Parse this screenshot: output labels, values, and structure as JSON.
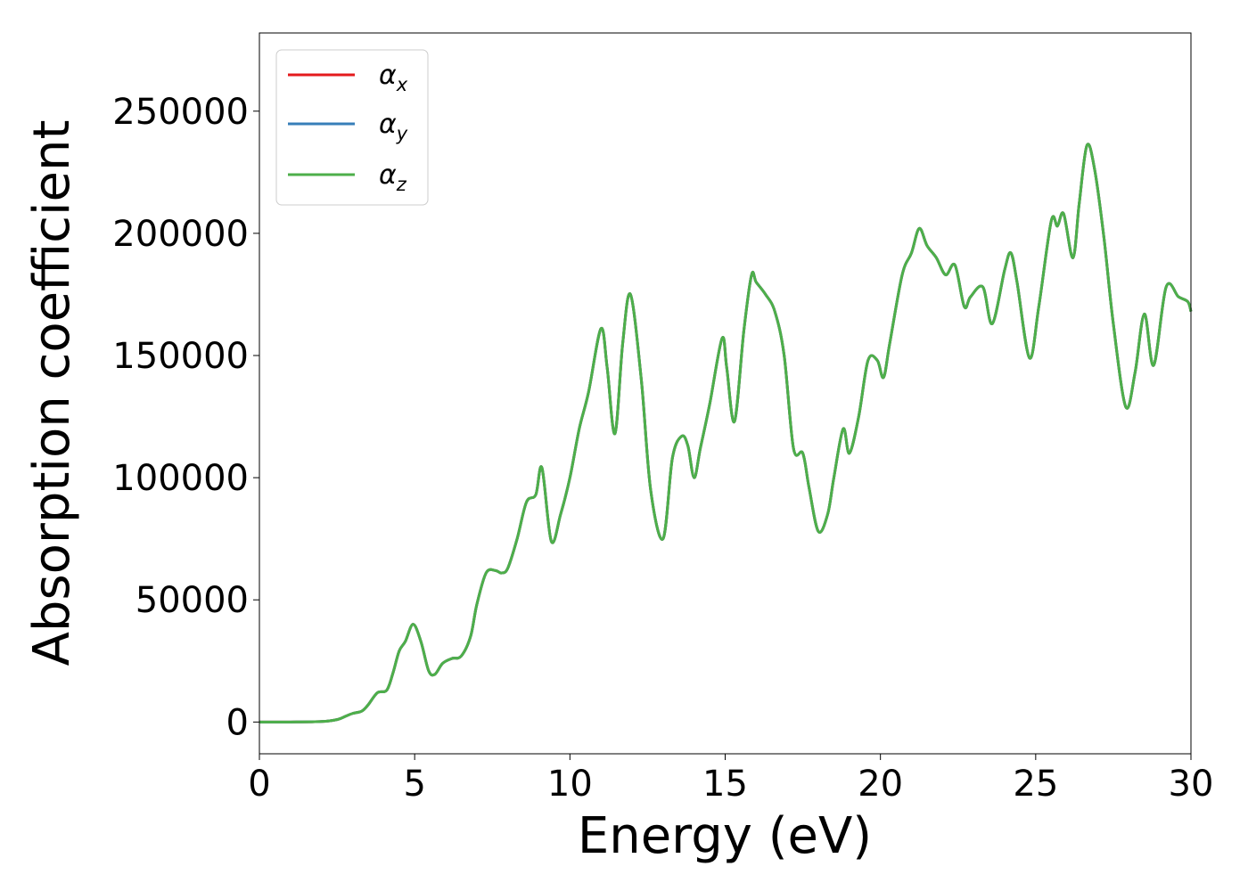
{
  "chart_data": {
    "type": "line",
    "xlabel": "Energy (eV)",
    "ylabel": "Absorption coefficient",
    "xlim": [
      0,
      30
    ],
    "ylim": [
      -13000,
      282000
    ],
    "xticks": [
      0,
      5,
      10,
      15,
      20,
      25,
      30
    ],
    "xtick_labels": [
      "0",
      "5",
      "10",
      "15",
      "20",
      "25",
      "30"
    ],
    "yticks": [
      0,
      50000,
      100000,
      150000,
      200000,
      250000
    ],
    "ytick_labels": [
      "0",
      "50000",
      "100000",
      "150000",
      "200000",
      "250000"
    ],
    "grid": false,
    "legend_position": "top-left",
    "series": [
      {
        "name": "α",
        "subscript": "x",
        "color": "#e41a1c"
      },
      {
        "name": "α",
        "subscript": "y",
        "color": "#377eb8"
      },
      {
        "name": "α",
        "subscript": "z",
        "color": "#4daf4a"
      }
    ],
    "x": [
      0,
      1,
      2,
      2.5,
      2.8,
      3.0,
      3.3,
      3.5,
      3.8,
      4.1,
      4.3,
      4.5,
      4.7,
      4.95,
      5.2,
      5.45,
      5.65,
      5.9,
      6.2,
      6.5,
      6.8,
      7.0,
      7.3,
      7.6,
      7.8,
      8.0,
      8.3,
      8.6,
      8.9,
      9.1,
      9.4,
      9.7,
      10.0,
      10.3,
      10.6,
      11.0,
      11.2,
      11.45,
      11.7,
      11.95,
      12.3,
      12.6,
      13.0,
      13.3,
      13.6,
      13.8,
      14.0,
      14.2,
      14.5,
      14.9,
      15.05,
      15.3,
      15.6,
      15.85,
      16.0,
      16.3,
      16.6,
      16.9,
      17.2,
      17.5,
      17.7,
      18.0,
      18.3,
      18.5,
      18.8,
      19.0,
      19.3,
      19.6,
      19.9,
      20.1,
      20.3,
      20.7,
      21.0,
      21.25,
      21.5,
      21.8,
      22.1,
      22.4,
      22.7,
      22.9,
      23.3,
      23.6,
      24.0,
      24.2,
      24.4,
      24.8,
      25.1,
      25.5,
      25.7,
      25.9,
      26.2,
      26.4,
      26.65,
      26.9,
      27.2,
      27.5,
      27.9,
      28.2,
      28.5,
      28.8,
      29.2,
      29.6,
      29.9,
      30.0
    ],
    "y": [
      0,
      0,
      200,
      1000,
      2500,
      3500,
      4500,
      7000,
      12000,
      13000,
      20000,
      29000,
      33000,
      40000,
      33000,
      21000,
      19500,
      24000,
      26000,
      27000,
      35000,
      48000,
      61000,
      62000,
      61000,
      63000,
      75000,
      90000,
      93000,
      104000,
      74000,
      85000,
      100000,
      120000,
      135000,
      161000,
      145000,
      118000,
      155000,
      175000,
      140000,
      95000,
      75000,
      108000,
      117000,
      113000,
      100000,
      112000,
      130000,
      157000,
      145000,
      123000,
      160000,
      183000,
      180000,
      175000,
      168000,
      150000,
      112000,
      110000,
      96000,
      78000,
      85000,
      100000,
      120000,
      110000,
      125000,
      148000,
      148000,
      141000,
      155000,
      183000,
      192000,
      202000,
      195000,
      190000,
      183000,
      187000,
      170000,
      174000,
      178000,
      163000,
      185000,
      192000,
      180000,
      149000,
      170000,
      205000,
      203000,
      208000,
      190000,
      212000,
      236000,
      226000,
      198000,
      163000,
      129000,
      143000,
      167000,
      146000,
      178000,
      174000,
      172000,
      168000
    ]
  }
}
